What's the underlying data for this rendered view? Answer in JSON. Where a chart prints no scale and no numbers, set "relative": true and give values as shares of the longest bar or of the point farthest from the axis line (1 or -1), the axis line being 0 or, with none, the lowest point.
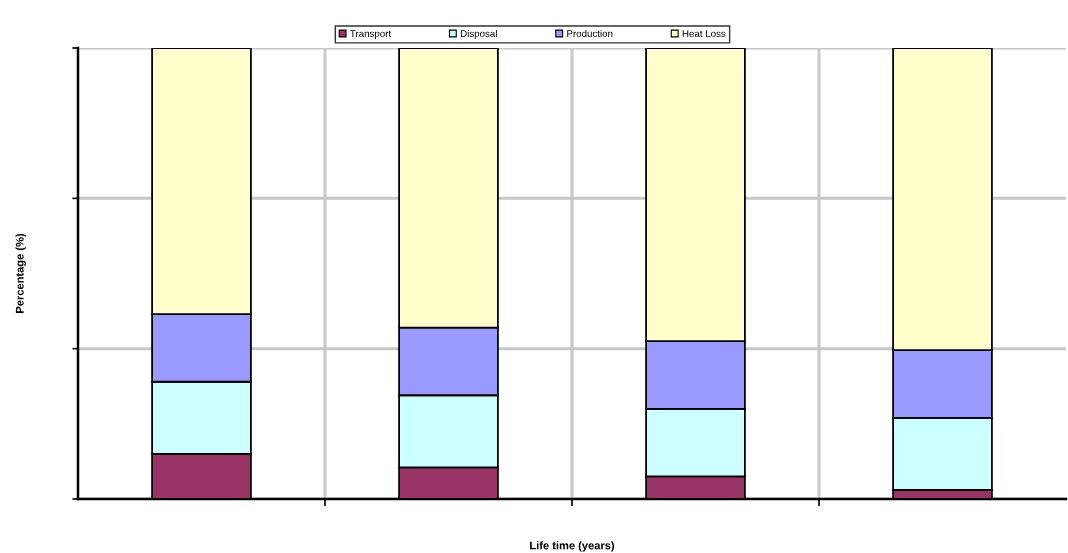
{
  "chart_data": {
    "type": "bar",
    "stacked": true,
    "relative": true,
    "xlabel": "Life time (years)",
    "ylabel": "Percentage (%)",
    "categories": [
      null,
      null,
      null,
      null
    ],
    "series": [
      {
        "name": "Transport",
        "color": "#993366",
        "values": [
          0.1,
          0.07,
          0.05,
          0.02
        ]
      },
      {
        "name": "Disposal",
        "color": "#ccffff",
        "values": [
          0.16,
          0.16,
          0.15,
          0.16
        ]
      },
      {
        "name": "Production",
        "color": "#9999ff",
        "values": [
          0.15,
          0.15,
          0.15,
          0.15
        ]
      },
      {
        "name": "Heat Loss",
        "color": "#ffffcc",
        "values": [
          0.59,
          0.62,
          0.65,
          0.67
        ]
      }
    ],
    "grid": true,
    "legend": "top"
  }
}
